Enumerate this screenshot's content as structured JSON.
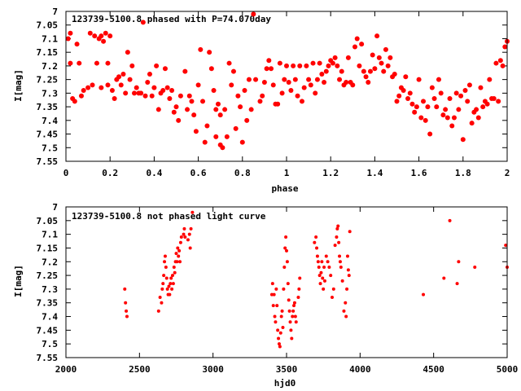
{
  "chart_data": [
    {
      "type": "scatter",
      "title": "123739-5100.8 phased with P=74.070day",
      "xlabel": "phase",
      "ylabel": "I[mag]",
      "xlim": [
        0,
        2
      ],
      "ylim": [
        7.55,
        7.0
      ],
      "y_inverted": true,
      "grid": false,
      "xticks": [
        "0",
        "0.2",
        "0.4",
        "0.6",
        "0.8",
        "1",
        "1.2",
        "1.4",
        "1.6",
        "1.8",
        "2"
      ],
      "xtick_values": [
        0,
        0.2,
        0.4,
        0.6,
        0.8,
        1.0,
        1.2,
        1.4,
        1.6,
        1.8,
        2.0
      ],
      "yticks": [
        "7",
        "7.05",
        "7.1",
        "7.15",
        "7.2",
        "7.25",
        "7.3",
        "7.35",
        "7.4",
        "7.45",
        "7.5",
        "7.55"
      ],
      "ytick_values": [
        7.0,
        7.05,
        7.1,
        7.15,
        7.2,
        7.25,
        7.3,
        7.35,
        7.4,
        7.45,
        7.5,
        7.55
      ],
      "marker_color": "#ff0000",
      "marker_size": 3,
      "points": [
        [
          0.01,
          7.1
        ],
        [
          0.02,
          7.08
        ],
        [
          0.02,
          7.19
        ],
        [
          0.03,
          7.32
        ],
        [
          0.04,
          7.33
        ],
        [
          0.05,
          7.12
        ],
        [
          0.06,
          7.19
        ],
        [
          0.07,
          7.31
        ],
        [
          0.08,
          7.29
        ],
        [
          0.1,
          7.28
        ],
        [
          0.11,
          7.08
        ],
        [
          0.12,
          7.27
        ],
        [
          0.13,
          7.09
        ],
        [
          0.14,
          7.19
        ],
        [
          0.15,
          7.1
        ],
        [
          0.16,
          7.28
        ],
        [
          0.16,
          7.09
        ],
        [
          0.17,
          7.11
        ],
        [
          0.18,
          7.08
        ],
        [
          0.19,
          7.19
        ],
        [
          0.19,
          7.27
        ],
        [
          0.2,
          7.09
        ],
        [
          0.21,
          7.29
        ],
        [
          0.22,
          7.32
        ],
        [
          0.23,
          7.25
        ],
        [
          0.24,
          7.24
        ],
        [
          0.25,
          7.27
        ],
        [
          0.26,
          7.23
        ],
        [
          0.27,
          7.3
        ],
        [
          0.28,
          7.15
        ],
        [
          0.29,
          7.25
        ],
        [
          0.3,
          7.2
        ],
        [
          0.31,
          7.3
        ],
        [
          0.32,
          7.28
        ],
        [
          0.33,
          7.3
        ],
        [
          0.34,
          7.3
        ],
        [
          0.35,
          7.04
        ],
        [
          0.36,
          7.31
        ],
        [
          0.37,
          7.26
        ],
        [
          0.38,
          7.23
        ],
        [
          0.39,
          7.31
        ],
        [
          0.4,
          7.28
        ],
        [
          0.41,
          7.2
        ],
        [
          0.42,
          7.36
        ],
        [
          0.43,
          7.3
        ],
        [
          0.44,
          7.29
        ],
        [
          0.45,
          7.21
        ],
        [
          0.46,
          7.28
        ],
        [
          0.47,
          7.32
        ],
        [
          0.48,
          7.29
        ],
        [
          0.49,
          7.37
        ],
        [
          0.5,
          7.35
        ],
        [
          0.51,
          7.4
        ],
        [
          0.52,
          7.31
        ],
        [
          0.54,
          7.22
        ],
        [
          0.55,
          7.36
        ],
        [
          0.56,
          7.31
        ],
        [
          0.57,
          7.33
        ],
        [
          0.58,
          7.38
        ],
        [
          0.59,
          7.44
        ],
        [
          0.6,
          7.27
        ],
        [
          0.61,
          7.14
        ],
        [
          0.62,
          7.33
        ],
        [
          0.63,
          7.48
        ],
        [
          0.64,
          7.42
        ],
        [
          0.65,
          7.15
        ],
        [
          0.66,
          7.21
        ],
        [
          0.67,
          7.29
        ],
        [
          0.68,
          7.46
        ],
        [
          0.68,
          7.36
        ],
        [
          0.69,
          7.34
        ],
        [
          0.7,
          7.49
        ],
        [
          0.7,
          7.38
        ],
        [
          0.71,
          7.5
        ],
        [
          0.72,
          7.36
        ],
        [
          0.73,
          7.46
        ],
        [
          0.74,
          7.19
        ],
        [
          0.75,
          7.27
        ],
        [
          0.76,
          7.22
        ],
        [
          0.77,
          7.43
        ],
        [
          0.78,
          7.31
        ],
        [
          0.79,
          7.35
        ],
        [
          0.8,
          7.48
        ],
        [
          0.81,
          7.29
        ],
        [
          0.82,
          7.4
        ],
        [
          0.83,
          7.25
        ],
        [
          0.84,
          7.36
        ],
        [
          0.85,
          7.01
        ],
        [
          0.86,
          7.25
        ],
        [
          0.88,
          7.33
        ],
        [
          0.89,
          7.31
        ],
        [
          0.9,
          7.26
        ],
        [
          0.91,
          7.21
        ],
        [
          0.92,
          7.18
        ],
        [
          0.93,
          7.21
        ],
        [
          0.94,
          7.27
        ],
        [
          0.95,
          7.34
        ],
        [
          0.96,
          7.34
        ],
        [
          0.97,
          7.19
        ],
        [
          0.98,
          7.3
        ],
        [
          0.99,
          7.25
        ],
        [
          1.0,
          7.2
        ],
        [
          1.01,
          7.26
        ],
        [
          1.02,
          7.29
        ],
        [
          1.03,
          7.2
        ],
        [
          1.04,
          7.25
        ],
        [
          1.05,
          7.31
        ],
        [
          1.06,
          7.2
        ],
        [
          1.07,
          7.33
        ],
        [
          1.08,
          7.28
        ],
        [
          1.09,
          7.2
        ],
        [
          1.1,
          7.25
        ],
        [
          1.11,
          7.27
        ],
        [
          1.12,
          7.19
        ],
        [
          1.13,
          7.3
        ],
        [
          1.14,
          7.25
        ],
        [
          1.15,
          7.19
        ],
        [
          1.16,
          7.23
        ],
        [
          1.17,
          7.26
        ],
        [
          1.18,
          7.22
        ],
        [
          1.19,
          7.2
        ],
        [
          1.2,
          7.18
        ],
        [
          1.21,
          7.19
        ],
        [
          1.22,
          7.17
        ],
        [
          1.23,
          7.2
        ],
        [
          1.24,
          7.25
        ],
        [
          1.25,
          7.22
        ],
        [
          1.26,
          7.27
        ],
        [
          1.27,
          7.26
        ],
        [
          1.28,
          7.17
        ],
        [
          1.29,
          7.26
        ],
        [
          1.3,
          7.27
        ],
        [
          1.31,
          7.13
        ],
        [
          1.32,
          7.1
        ],
        [
          1.33,
          7.2
        ],
        [
          1.34,
          7.12
        ],
        [
          1.35,
          7.22
        ],
        [
          1.36,
          7.24
        ],
        [
          1.37,
          7.26
        ],
        [
          1.38,
          7.22
        ],
        [
          1.39,
          7.16
        ],
        [
          1.4,
          7.21
        ],
        [
          1.41,
          7.09
        ],
        [
          1.42,
          7.17
        ],
        [
          1.43,
          7.19
        ],
        [
          1.44,
          7.22
        ],
        [
          1.45,
          7.14
        ],
        [
          1.46,
          7.2
        ],
        [
          1.47,
          7.17
        ],
        [
          1.48,
          7.24
        ],
        [
          1.49,
          7.23
        ],
        [
          1.5,
          7.33
        ],
        [
          1.51,
          7.31
        ],
        [
          1.52,
          7.28
        ],
        [
          1.53,
          7.29
        ],
        [
          1.54,
          7.24
        ],
        [
          1.55,
          7.32
        ],
        [
          1.56,
          7.3
        ],
        [
          1.57,
          7.34
        ],
        [
          1.58,
          7.37
        ],
        [
          1.59,
          7.35
        ],
        [
          1.6,
          7.25
        ],
        [
          1.61,
          7.39
        ],
        [
          1.62,
          7.33
        ],
        [
          1.63,
          7.4
        ],
        [
          1.64,
          7.35
        ],
        [
          1.65,
          7.45
        ],
        [
          1.66,
          7.28
        ],
        [
          1.67,
          7.32
        ],
        [
          1.68,
          7.35
        ],
        [
          1.69,
          7.25
        ],
        [
          1.7,
          7.3
        ],
        [
          1.71,
          7.38
        ],
        [
          1.72,
          7.36
        ],
        [
          1.73,
          7.39
        ],
        [
          1.74,
          7.32
        ],
        [
          1.75,
          7.42
        ],
        [
          1.76,
          7.39
        ],
        [
          1.77,
          7.3
        ],
        [
          1.78,
          7.36
        ],
        [
          1.79,
          7.31
        ],
        [
          1.8,
          7.47
        ],
        [
          1.81,
          7.29
        ],
        [
          1.82,
          7.33
        ],
        [
          1.83,
          7.27
        ],
        [
          1.84,
          7.41
        ],
        [
          1.85,
          7.37
        ],
        [
          1.86,
          7.36
        ],
        [
          1.87,
          7.39
        ],
        [
          1.88,
          7.28
        ],
        [
          1.89,
          7.35
        ],
        [
          1.9,
          7.33
        ],
        [
          1.91,
          7.34
        ],
        [
          1.92,
          7.25
        ],
        [
          1.93,
          7.32
        ],
        [
          1.94,
          7.32
        ],
        [
          1.95,
          7.19
        ],
        [
          1.96,
          7.33
        ],
        [
          1.97,
          7.18
        ],
        [
          1.98,
          7.2
        ],
        [
          1.99,
          7.13
        ],
        [
          2.0,
          7.11
        ]
      ]
    },
    {
      "type": "scatter",
      "title": "123739-5100.8 not phased light curve",
      "xlabel": "hjd0",
      "ylabel": "I[mag]",
      "xlim": [
        2000,
        5000
      ],
      "ylim": [
        7.55,
        7.0
      ],
      "y_inverted": true,
      "grid": false,
      "xticks": [
        "2000",
        "2500",
        "3000",
        "3500",
        "4000",
        "4500",
        "5000"
      ],
      "xtick_values": [
        2000,
        2500,
        3000,
        3500,
        4000,
        4500,
        5000
      ],
      "yticks": [
        "7",
        "7.05",
        "7.1",
        "7.15",
        "7.2",
        "7.25",
        "7.3",
        "7.35",
        "7.4",
        "7.45",
        "7.5",
        "7.55"
      ],
      "ytick_values": [
        7.0,
        7.05,
        7.1,
        7.15,
        7.2,
        7.25,
        7.3,
        7.35,
        7.4,
        7.45,
        7.5,
        7.55
      ],
      "marker_color": "#ff0000",
      "marker_size": 2,
      "points": [
        [
          2400,
          7.3
        ],
        [
          2405,
          7.35
        ],
        [
          2410,
          7.38
        ],
        [
          2415,
          7.4
        ],
        [
          2630,
          7.38
        ],
        [
          2640,
          7.33
        ],
        [
          2650,
          7.35
        ],
        [
          2655,
          7.3
        ],
        [
          2660,
          7.28
        ],
        [
          2665,
          7.25
        ],
        [
          2670,
          7.2
        ],
        [
          2675,
          7.18
        ],
        [
          2680,
          7.22
        ],
        [
          2685,
          7.26
        ],
        [
          2690,
          7.3
        ],
        [
          2695,
          7.32
        ],
        [
          2700,
          7.29
        ],
        [
          2705,
          7.32
        ],
        [
          2710,
          7.28
        ],
        [
          2715,
          7.26
        ],
        [
          2720,
          7.3
        ],
        [
          2725,
          7.25
        ],
        [
          2730,
          7.28
        ],
        [
          2735,
          7.22
        ],
        [
          2740,
          7.24
        ],
        [
          2745,
          7.2
        ],
        [
          2750,
          7.17
        ],
        [
          2755,
          7.2
        ],
        [
          2760,
          7.15
        ],
        [
          2765,
          7.18
        ],
        [
          2770,
          7.16
        ],
        [
          2775,
          7.2
        ],
        [
          2780,
          7.13
        ],
        [
          2785,
          7.11
        ],
        [
          2800,
          7.1
        ],
        [
          2805,
          7.08
        ],
        [
          2810,
          7.11
        ],
        [
          2830,
          7.12
        ],
        [
          2840,
          7.1
        ],
        [
          2845,
          7.15
        ],
        [
          2850,
          7.08
        ],
        [
          2860,
          7.02
        ],
        [
          3400,
          7.32
        ],
        [
          3405,
          7.28
        ],
        [
          3410,
          7.36
        ],
        [
          3415,
          7.32
        ],
        [
          3420,
          7.4
        ],
        [
          3425,
          7.42
        ],
        [
          3430,
          7.3
        ],
        [
          3435,
          7.36
        ],
        [
          3440,
          7.45
        ],
        [
          3445,
          7.48
        ],
        [
          3450,
          7.5
        ],
        [
          3455,
          7.51
        ],
        [
          3460,
          7.46
        ],
        [
          3465,
          7.4
        ],
        [
          3470,
          7.38
        ],
        [
          3475,
          7.44
        ],
        [
          3480,
          7.3
        ],
        [
          3485,
          7.22
        ],
        [
          3490,
          7.15
        ],
        [
          3495,
          7.11
        ],
        [
          3500,
          7.16
        ],
        [
          3505,
          7.2
        ],
        [
          3510,
          7.28
        ],
        [
          3515,
          7.34
        ],
        [
          3520,
          7.38
        ],
        [
          3525,
          7.42
        ],
        [
          3530,
          7.45
        ],
        [
          3535,
          7.48
        ],
        [
          3540,
          7.4
        ],
        [
          3545,
          7.38
        ],
        [
          3550,
          7.36
        ],
        [
          3555,
          7.35
        ],
        [
          3560,
          7.4
        ],
        [
          3565,
          7.42
        ],
        [
          3580,
          7.33
        ],
        [
          3585,
          7.3
        ],
        [
          3590,
          7.26
        ],
        [
          3690,
          7.13
        ],
        [
          3700,
          7.11
        ],
        [
          3705,
          7.15
        ],
        [
          3710,
          7.18
        ],
        [
          3715,
          7.2
        ],
        [
          3720,
          7.22
        ],
        [
          3725,
          7.25
        ],
        [
          3730,
          7.28
        ],
        [
          3735,
          7.24
        ],
        [
          3740,
          7.2
        ],
        [
          3745,
          7.26
        ],
        [
          3750,
          7.3
        ],
        [
          3755,
          7.22
        ],
        [
          3760,
          7.27
        ],
        [
          3770,
          7.18
        ],
        [
          3780,
          7.2
        ],
        [
          3790,
          7.22
        ],
        [
          3800,
          7.25
        ],
        [
          3810,
          7.33
        ],
        [
          3820,
          7.3
        ],
        [
          3830,
          7.14
        ],
        [
          3840,
          7.11
        ],
        [
          3845,
          7.08
        ],
        [
          3850,
          7.07
        ],
        [
          3855,
          7.13
        ],
        [
          3860,
          7.18
        ],
        [
          3865,
          7.2
        ],
        [
          3870,
          7.22
        ],
        [
          3880,
          7.27
        ],
        [
          3890,
          7.38
        ],
        [
          3900,
          7.35
        ],
        [
          3905,
          7.4
        ],
        [
          3910,
          7.3
        ],
        [
          3915,
          7.18
        ],
        [
          3920,
          7.23
        ],
        [
          3925,
          7.25
        ],
        [
          3930,
          7.09
        ],
        [
          4430,
          7.32
        ],
        [
          4570,
          7.26
        ],
        [
          4610,
          7.05
        ],
        [
          4660,
          7.28
        ],
        [
          4670,
          7.2
        ],
        [
          4780,
          7.22
        ],
        [
          4990,
          7.14
        ],
        [
          5000,
          7.22
        ]
      ]
    }
  ]
}
